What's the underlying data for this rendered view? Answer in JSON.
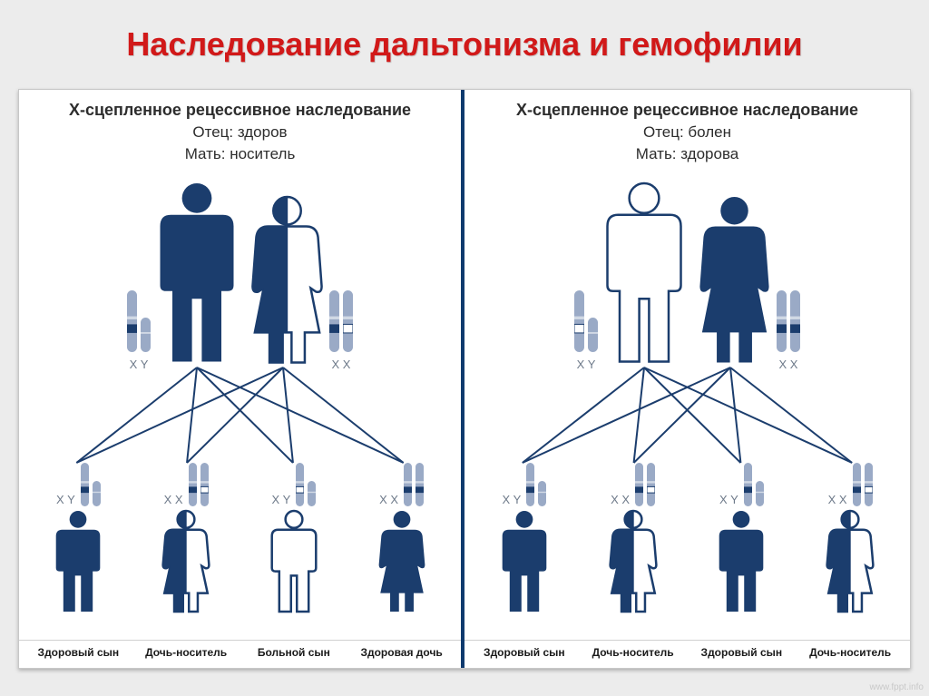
{
  "title": "Наследование дальтонизма и гемофилии",
  "panels": [
    {
      "header": "Х-сцепленное рецессивное наследование",
      "father_line": "Отец: здоров",
      "mother_line": "Мать: носитель",
      "father": {
        "sex": "M",
        "fill": "full",
        "chrX": "normal",
        "chrY": true,
        "label": "X Y"
      },
      "mother": {
        "sex": "F",
        "fill": "half",
        "chrX1": "normal",
        "chrX2": "affected",
        "label": "X X"
      },
      "children": [
        {
          "sex": "M",
          "fill": "full",
          "chrX": "normal",
          "chrY": true,
          "label": "X Y",
          "caption": "Здоровый сын"
        },
        {
          "sex": "F",
          "fill": "half",
          "chrX1": "normal",
          "chrX2": "affected",
          "label": "X X",
          "caption": "Дочь-носитель"
        },
        {
          "sex": "M",
          "fill": "none",
          "chrX": "affected",
          "chrY": true,
          "label": "X Y",
          "caption": "Больной сын"
        },
        {
          "sex": "F",
          "fill": "full",
          "chrX1": "normal",
          "chrX2": "normal",
          "label": "X X",
          "caption": "Здоровая дочь"
        }
      ]
    },
    {
      "header": "Х-сцепленное рецессивное наследование",
      "father_line": "Отец: болен",
      "mother_line": "Мать: здорова",
      "father": {
        "sex": "M",
        "fill": "none",
        "chrX": "affected",
        "chrY": true,
        "label": "X Y"
      },
      "mother": {
        "sex": "F",
        "fill": "full",
        "chrX1": "normal",
        "chrX2": "normal",
        "label": "X X"
      },
      "children": [
        {
          "sex": "M",
          "fill": "full",
          "chrX": "normal",
          "chrY": true,
          "label": "X Y",
          "caption": "Здоровый сын"
        },
        {
          "sex": "F",
          "fill": "half",
          "chrX1": "normal",
          "chrX2": "affected",
          "label": "X X",
          "caption": "Дочь-носитель"
        },
        {
          "sex": "M",
          "fill": "full",
          "chrX": "normal",
          "chrY": true,
          "label": "X Y",
          "caption": "Здоровый сын"
        },
        {
          "sex": "F",
          "fill": "half",
          "chrX1": "normal",
          "chrX2": "affected",
          "label": "X X",
          "caption": "Дочь-носитель"
        }
      ]
    }
  ],
  "colors": {
    "dark": "#1b3d6d",
    "mid": "#7e93b5",
    "light": "#ffffff",
    "outline": "#1b3d6d",
    "band_normal": "#1b3d6d",
    "band_affected": "#ffffff",
    "chrom_body": "#9aaac6"
  },
  "sizes": {
    "parent_h": 210,
    "parent_w": 90,
    "kid_h": 120,
    "kid_w": 54,
    "chrom_big": {
      "w": 11,
      "h": 68,
      "short_h": 38
    },
    "chrom_small": {
      "w": 9,
      "h": 48,
      "short_h": 28
    }
  },
  "watermark": "www.fppt.info"
}
